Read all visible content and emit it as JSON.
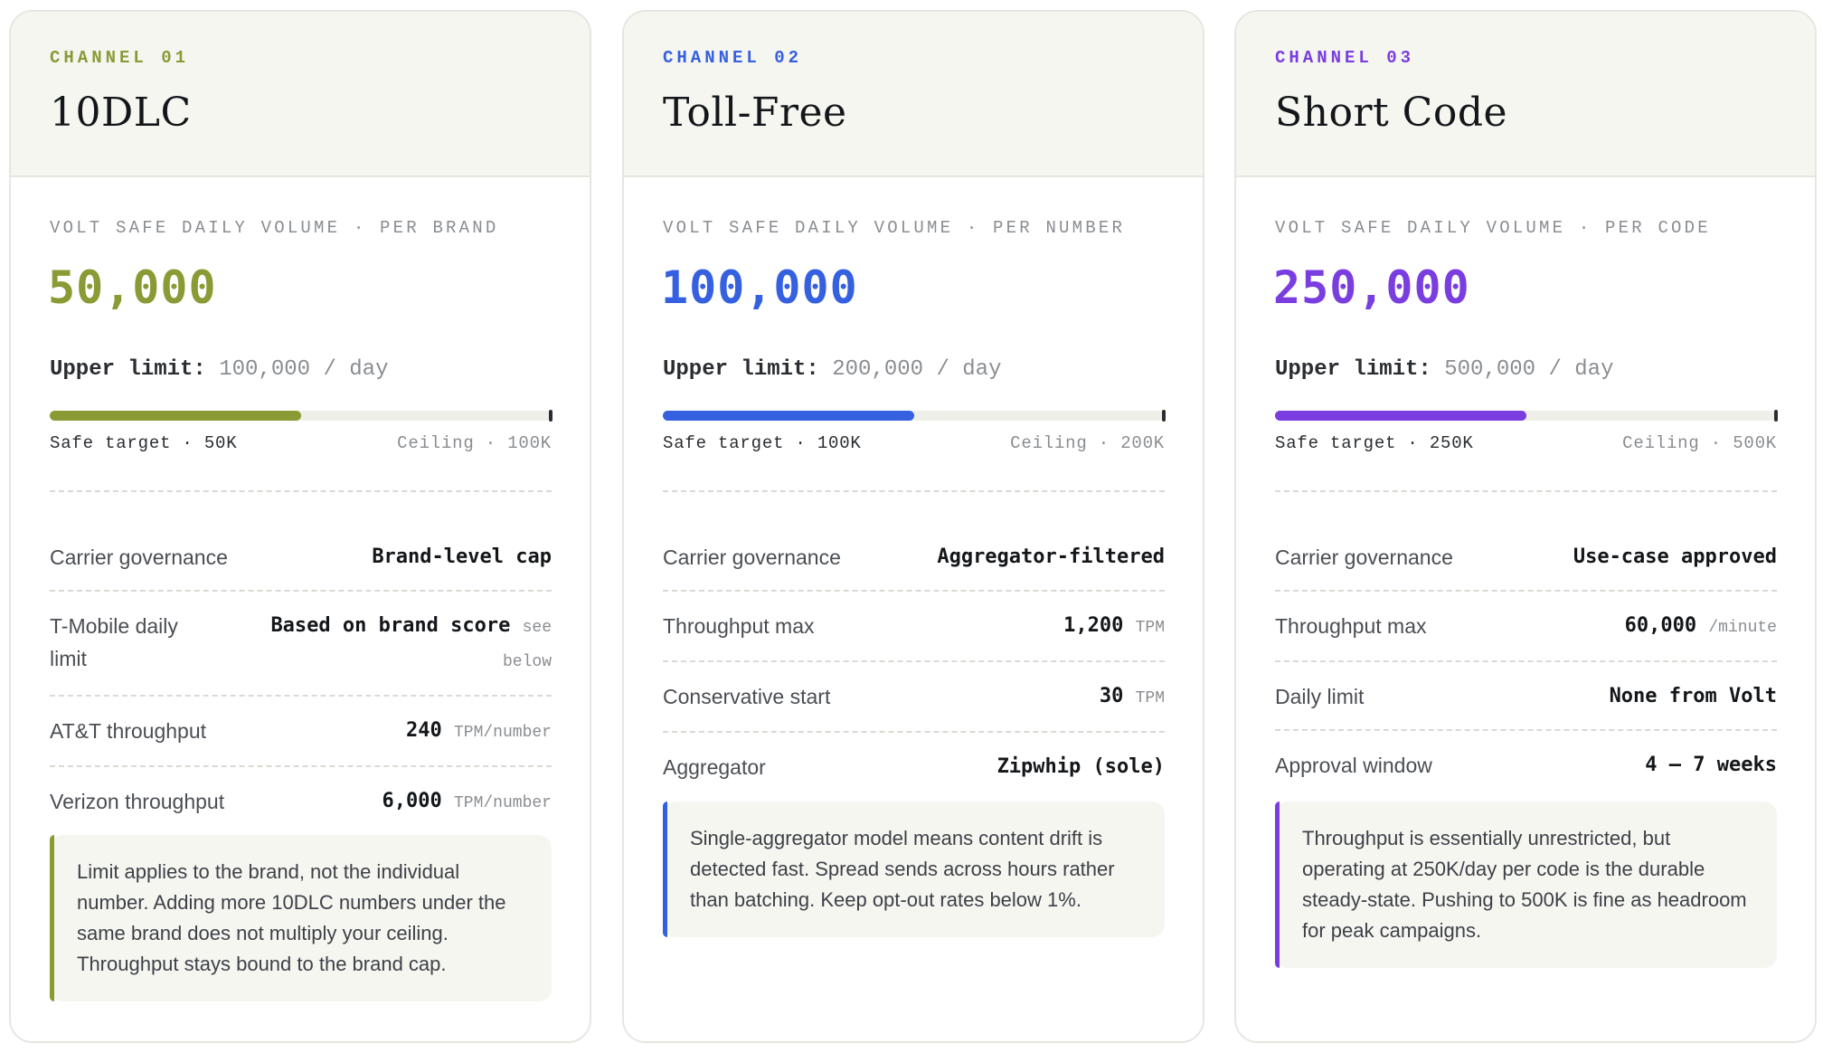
{
  "colors": {
    "olive": "#8a9a35",
    "blue": "#3560e0",
    "purple": "#7a3ee0"
  },
  "cards": [
    {
      "channel": "CHANNEL 01",
      "title": "10DLC",
      "volume_label": "VOLT SAFE DAILY VOLUME · PER BRAND",
      "volume_value": "50,000",
      "upper_label": "Upper limit:",
      "upper_value": "100,000 / day",
      "progress_fraction": 0.5,
      "safe_target": "Safe target · 50K",
      "ceiling": "Ceiling · 100K",
      "rows": [
        {
          "label": "Carrier governance",
          "value": "Brand-level cap",
          "unit": ""
        },
        {
          "label": "T-Mobile daily limit",
          "value": "Based on brand score",
          "unit": "see below"
        },
        {
          "label": "AT&T throughput",
          "value": "240",
          "unit": "TPM/number"
        },
        {
          "label": "Verizon throughput",
          "value": "6,000",
          "unit": "TPM/number"
        }
      ],
      "note": "Limit applies to the brand, not the individual number. Adding more 10DLC numbers under the same brand does not multiply your ceiling. Throughput stays bound to the brand cap."
    },
    {
      "channel": "CHANNEL 02",
      "title": "Toll-Free",
      "volume_label": "VOLT SAFE DAILY VOLUME · PER NUMBER",
      "volume_value": "100,000",
      "upper_label": "Upper limit:",
      "upper_value": "200,000 / day",
      "progress_fraction": 0.5,
      "safe_target": "Safe target · 100K",
      "ceiling": "Ceiling · 200K",
      "rows": [
        {
          "label": "Carrier governance",
          "value": "Aggregator-filtered",
          "unit": ""
        },
        {
          "label": "Throughput max",
          "value": "1,200",
          "unit": "TPM"
        },
        {
          "label": "Conservative start",
          "value": "30",
          "unit": "TPM"
        },
        {
          "label": "Aggregator",
          "value": "Zipwhip (sole)",
          "unit": ""
        }
      ],
      "note": "Single-aggregator model means content drift is detected fast. Spread sends across hours rather than batching. Keep opt-out rates below 1%."
    },
    {
      "channel": "CHANNEL 03",
      "title": "Short Code",
      "volume_label": "VOLT SAFE DAILY VOLUME · PER CODE",
      "volume_value": "250,000",
      "upper_label": "Upper limit:",
      "upper_value": "500,000 / day",
      "progress_fraction": 0.5,
      "safe_target": "Safe target · 250K",
      "ceiling": "Ceiling · 500K",
      "rows": [
        {
          "label": "Carrier governance",
          "value": "Use-case approved",
          "unit": ""
        },
        {
          "label": "Throughput max",
          "value": "60,000",
          "unit": "/minute"
        },
        {
          "label": "Daily limit",
          "value": "None from Volt",
          "unit": ""
        },
        {
          "label": "Approval window",
          "value": "4 – 7 weeks",
          "unit": ""
        }
      ],
      "note": "Throughput is essentially unrestricted, but operating at 250K/day per code is the durable steady-state. Pushing to 500K is fine as headroom for peak campaigns."
    }
  ]
}
